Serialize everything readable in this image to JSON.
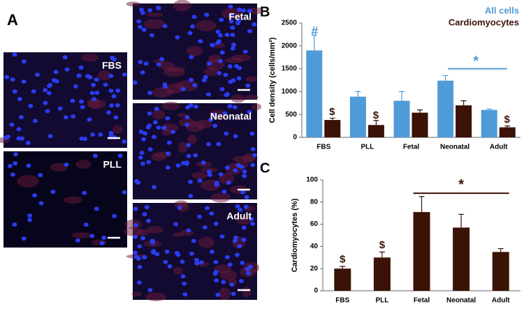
{
  "panels": {
    "labels": [
      "A",
      "B",
      "C"
    ],
    "images": [
      "FBS",
      "PLL",
      "Fetal",
      "Neonatal",
      "Adult"
    ]
  },
  "chart_data": [
    {
      "type": "bar",
      "ylabel": "Cell density (cells/mm²)",
      "categories": [
        "FBS",
        "PLL",
        "Fetal",
        "Neonatal",
        "Adult"
      ],
      "series": [
        {
          "name": "All cells",
          "color": "#4f9bd9",
          "values": [
            1900,
            890,
            800,
            1240,
            600
          ],
          "errors": [
            330,
            110,
            200,
            110,
            20
          ]
        },
        {
          "name": "Cardiomyocytes",
          "color": "#3a1206",
          "values": [
            380,
            270,
            540,
            700,
            220
          ],
          "errors": [
            40,
            100,
            60,
            100,
            30
          ]
        }
      ],
      "ylim": [
        0,
        2500
      ],
      "yticks": [
        0,
        500,
        1000,
        1500,
        2000,
        2500
      ],
      "annotations": [
        "#",
        "$",
        "$",
        "$",
        "*"
      ]
    },
    {
      "type": "bar",
      "ylabel": "Cardiomyocytes (%)",
      "categories": [
        "FBS",
        "PLL",
        "Fetal",
        "Neonatal",
        "Adult"
      ],
      "values": [
        20,
        30,
        71,
        57,
        35
      ],
      "errors": [
        2,
        5,
        14,
        12,
        3
      ],
      "color": "#3a1206",
      "ylim": [
        0,
        100
      ],
      "yticks": [
        0,
        20,
        40,
        60,
        80,
        100
      ],
      "annotations": [
        "$",
        "$",
        "*"
      ]
    }
  ]
}
